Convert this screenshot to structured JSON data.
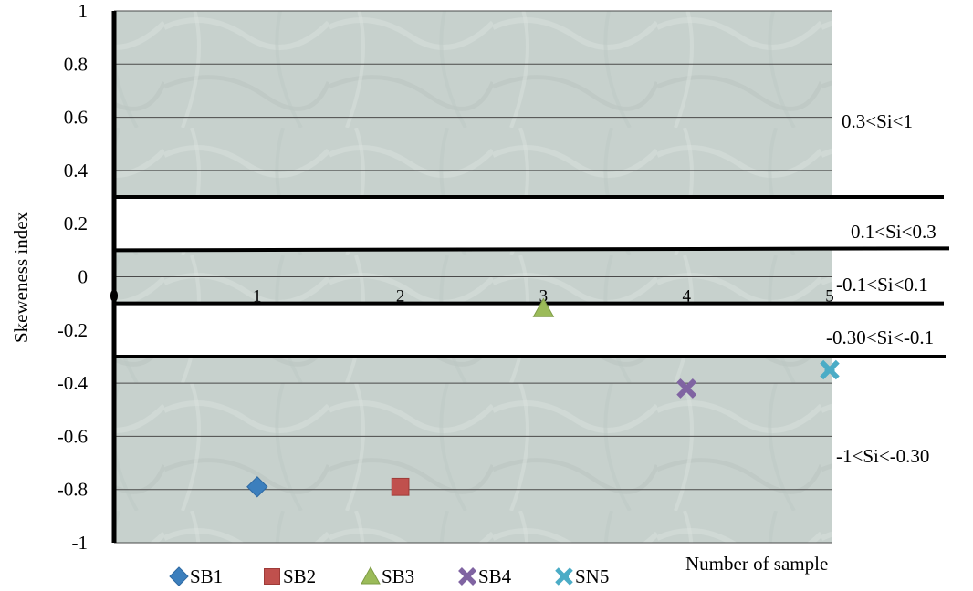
{
  "chart_data": {
    "type": "scatter",
    "title": "",
    "xlabel": "Number of sample",
    "ylabel": "Skeweness index",
    "xlim": [
      0,
      5
    ],
    "ylim": [
      -1,
      1
    ],
    "y_ticks": [
      "1",
      "0.8",
      "0.6",
      "0.4",
      "0.2",
      "0",
      "-0.2",
      "-0.4",
      "-0.6",
      "-0.8",
      "-1"
    ],
    "x_ticks": [
      "0",
      "1",
      "2",
      "3",
      "4",
      "5"
    ],
    "grid": true,
    "legend_position": "bottom",
    "series": [
      {
        "name": "SB1",
        "marker": "diamond",
        "color": "#3c7fbd",
        "x": [
          1
        ],
        "y": [
          -0.79
        ]
      },
      {
        "name": "SB2",
        "marker": "square",
        "color": "#c0504d",
        "x": [
          2
        ],
        "y": [
          -0.79
        ]
      },
      {
        "name": "SB3",
        "marker": "triangle",
        "color": "#9bbb59",
        "x": [
          3
        ],
        "y": [
          -0.12
        ]
      },
      {
        "name": "SB4",
        "marker": "x",
        "color": "#8064a2",
        "x": [
          4
        ],
        "y": [
          -0.42
        ]
      },
      {
        "name": "SN5",
        "marker": "star",
        "color": "#4bacc6",
        "x": [
          5
        ],
        "y": [
          -0.35
        ]
      }
    ],
    "bands": [
      {
        "label": "0.3<Si<1",
        "y_range": [
          0.3,
          1
        ]
      },
      {
        "label": "0.1<Si<0.3",
        "y_range": [
          0.1,
          0.3
        ]
      },
      {
        "label": "-0.1<Si<0.1",
        "y_range": [
          -0.1,
          0.1
        ]
      },
      {
        "label": "-0.30<Si<-0.1",
        "y_range": [
          -0.3,
          -0.1
        ]
      },
      {
        "label": "-1<Si<-0.30",
        "y_range": [
          -1,
          -0.3
        ]
      }
    ],
    "colors": {
      "plot_bg": "#c9d3cf",
      "grid": "#4a4a4a",
      "white_band": "#ffffff"
    }
  }
}
